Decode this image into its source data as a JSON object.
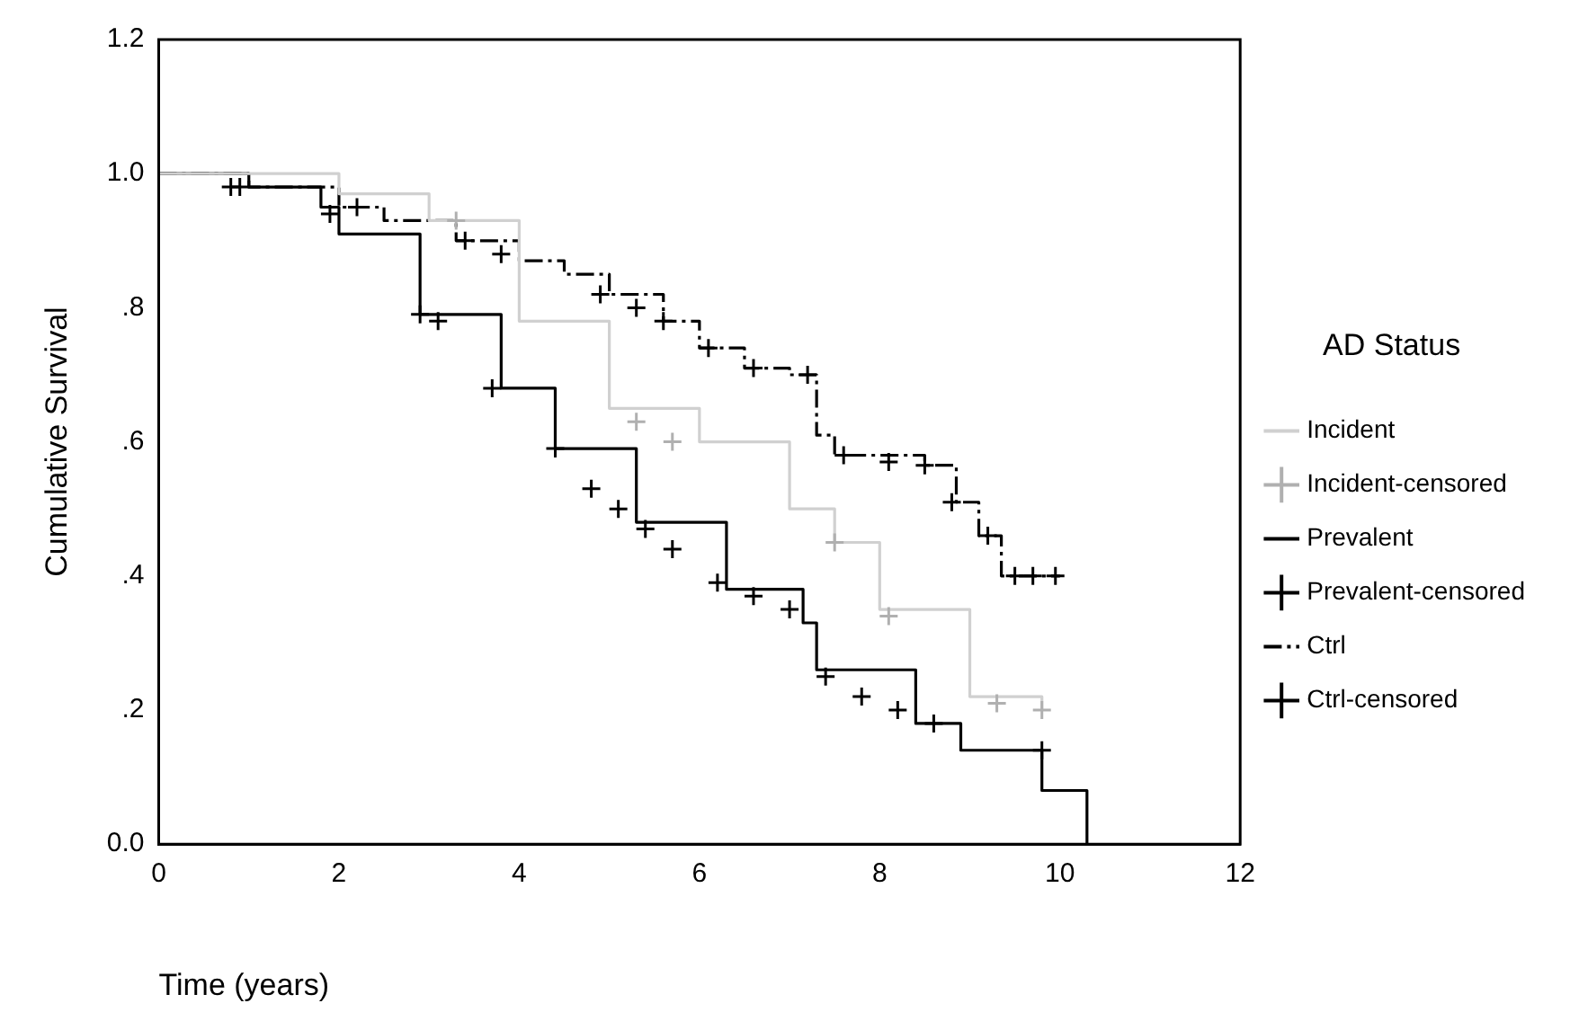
{
  "chart_data": {
    "type": "step",
    "xlabel": "Time (years)",
    "ylabel": "Cumulative Survival",
    "legend_title": "AD Status",
    "legend": "right",
    "grid": false,
    "xlim": [
      0,
      12
    ],
    "xticks": [
      0,
      2,
      4,
      6,
      8,
      10,
      12
    ],
    "ylim": [
      0,
      1.2
    ],
    "yticks": [
      {
        "value": 0,
        "label": "0.0"
      },
      {
        "value": 0.2,
        "label": ".2"
      },
      {
        "value": 0.4,
        "label": ".4"
      },
      {
        "value": 0.6,
        "label": ".6"
      },
      {
        "value": 0.8,
        "label": ".8"
      },
      {
        "value": 1,
        "label": "1.0"
      },
      {
        "value": 1.2,
        "label": "1.2"
      }
    ],
    "series": [
      {
        "name": "Incident",
        "color": "#d0d0d0",
        "line_style": "solid",
        "x": [
          0,
          2,
          3,
          4,
          5,
          6,
          7,
          7.5,
          8,
          9,
          9.8
        ],
        "values": [
          1,
          0.97,
          0.93,
          0.78,
          0.65,
          0.6,
          0.5,
          0.45,
          0.35,
          0.22,
          0.2
        ]
      },
      {
        "name": "Incident-censored",
        "type": "scatter",
        "marker": "cross",
        "color": "#b0b0b0",
        "x": [
          3.3,
          5.3,
          5.7,
          7.5,
          8.1,
          9.3,
          9.8
        ],
        "values": [
          0.93,
          0.63,
          0.6,
          0.45,
          0.34,
          0.21,
          0.2
        ]
      },
      {
        "name": "Prevalent",
        "color": "#000000",
        "line_style": "solid",
        "x": [
          0,
          1,
          1.8,
          2,
          2.9,
          3.8,
          4.4,
          5.3,
          6.3,
          7.15,
          7.3,
          8.4,
          8.9,
          9.8,
          10.25,
          10.3
        ],
        "values": [
          1,
          0.98,
          0.95,
          0.91,
          0.79,
          0.68,
          0.59,
          0.48,
          0.38,
          0.33,
          0.26,
          0.18,
          0.14,
          0.08,
          0.08,
          0
        ]
      },
      {
        "name": "Prevalent-censored",
        "type": "scatter",
        "marker": "cross",
        "color": "#000000",
        "x": [
          0.8,
          1.9,
          2.9,
          3.1,
          3.7,
          4.4,
          4.8,
          5.1,
          5.4,
          5.7,
          6.2,
          6.6,
          7.0,
          7.4,
          7.8,
          8.2,
          8.6,
          9.8
        ],
        "values": [
          0.98,
          0.94,
          0.79,
          0.78,
          0.68,
          0.59,
          0.53,
          0.5,
          0.47,
          0.44,
          0.39,
          0.37,
          0.35,
          0.25,
          0.22,
          0.2,
          0.18,
          0.14
        ]
      },
      {
        "name": "Ctrl",
        "color": "#000000",
        "line_style": "dashed",
        "x": [
          0,
          1,
          2,
          2.5,
          3.3,
          4,
          4.5,
          5,
          5.6,
          6,
          6.5,
          7,
          7.3,
          7.5,
          8.5,
          8.85,
          9.1,
          9.35,
          10
        ],
        "values": [
          1,
          0.98,
          0.95,
          0.93,
          0.9,
          0.87,
          0.85,
          0.82,
          0.78,
          0.74,
          0.71,
          0.7,
          0.61,
          0.58,
          0.565,
          0.51,
          0.46,
          0.4,
          0.4
        ]
      },
      {
        "name": "Ctrl-censored",
        "type": "scatter",
        "marker": "cross",
        "color": "#000000",
        "x": [
          0.9,
          2.2,
          3.4,
          3.8,
          4.9,
          5.3,
          5.6,
          6.1,
          6.6,
          7.2,
          7.6,
          8.1,
          8.5,
          8.8,
          9.2,
          9.5,
          9.7,
          9.95
        ],
        "values": [
          0.98,
          0.95,
          0.9,
          0.88,
          0.82,
          0.8,
          0.78,
          0.74,
          0.71,
          0.7,
          0.58,
          0.57,
          0.565,
          0.51,
          0.46,
          0.4,
          0.4,
          0.4
        ]
      }
    ]
  }
}
